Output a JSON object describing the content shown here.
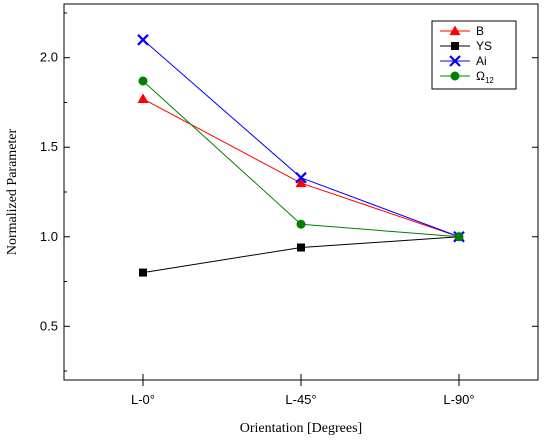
{
  "chart_data": {
    "type": "line",
    "title": "",
    "xlabel": "Orientation [Degrees]",
    "ylabel": "Normalized Parameter",
    "categories": [
      "L-0°",
      "L-45°",
      "L-90°"
    ],
    "ylim": [
      0.2,
      2.3
    ],
    "yticks": [
      0.5,
      1.0,
      1.5,
      2.0
    ],
    "ytick_labels": [
      "0.5",
      "1.0",
      "1.5",
      "2.0"
    ],
    "grid": false,
    "legend_position": "top-right",
    "series": [
      {
        "name": "B",
        "label_main": "B",
        "label_sub": "",
        "color": "#ff0000",
        "marker": "triangle",
        "values": [
          1.77,
          1.3,
          1.0
        ]
      },
      {
        "name": "YS",
        "label_main": "YS",
        "label_sub": "",
        "color": "#000000",
        "marker": "square",
        "values": [
          0.8,
          0.94,
          1.0
        ]
      },
      {
        "name": "Ai",
        "label_main": "Ai",
        "label_sub": "",
        "color": "#0000ff",
        "marker": "cross",
        "values": [
          2.1,
          1.33,
          1.0
        ]
      },
      {
        "name": "Ω12",
        "label_main": "Ω",
        "label_sub": "12",
        "color": "#008000",
        "marker": "circle",
        "values": [
          1.87,
          1.07,
          1.0
        ]
      }
    ]
  }
}
